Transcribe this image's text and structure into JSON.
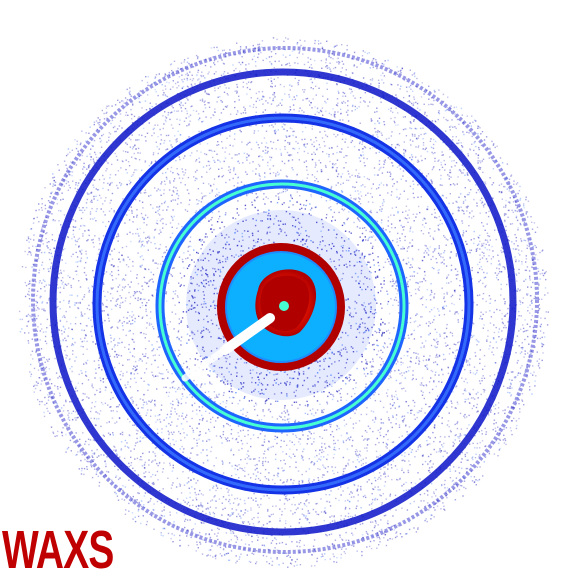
{
  "label": {
    "text": "WAXS",
    "color": "#c00000"
  },
  "pattern": {
    "background": "#ffffff",
    "colormap": [
      "#00008b",
      "#0000ff",
      "#1e64ff",
      "#00c8ff",
      "#46ffd2",
      "#ffff00",
      "#ff8000",
      "#ff0000",
      "#8b0000"
    ]
  }
}
